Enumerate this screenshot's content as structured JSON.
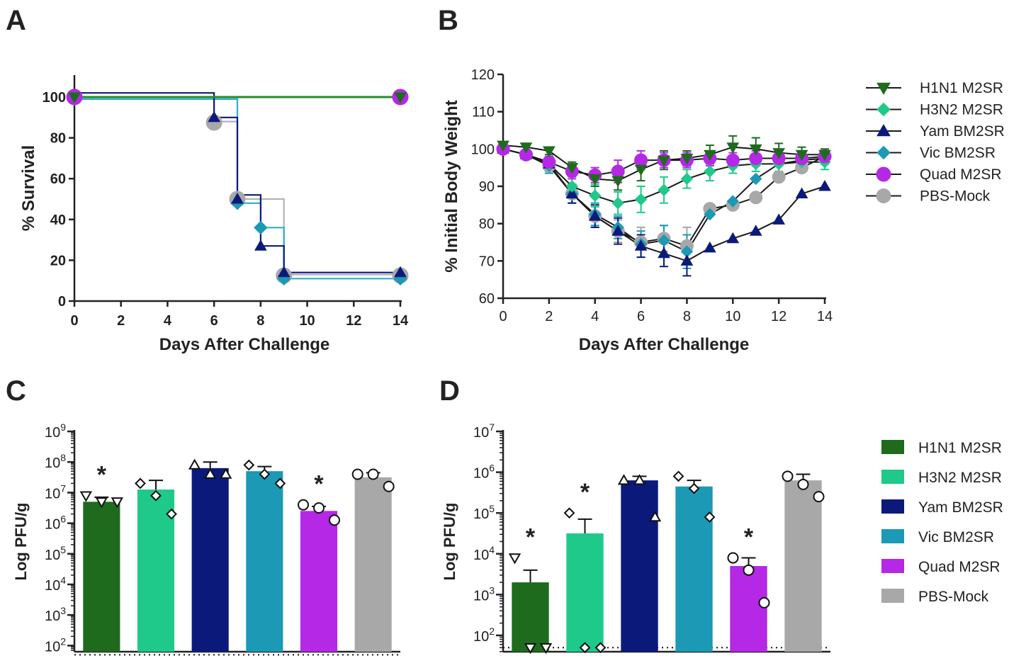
{
  "colors": {
    "h1n1": "#1e6b1e",
    "h3n2": "#1fc98a",
    "yam": "#0b1a7a",
    "vic": "#1b99b5",
    "quad": "#b428e6",
    "pbs": "#a8a8a8",
    "h1n1_line": "#2a8a2a",
    "vic_line": "#2bb0c8",
    "pbs_line": "#b3b3b3",
    "axis": "#222222"
  },
  "chart_data": [
    {
      "panel": "A",
      "type": "line",
      "subtype": "kaplan-meier",
      "xlabel": "Days After Challenge",
      "ylabel": "% Survival",
      "xlim": [
        0,
        14
      ],
      "ylim": [
        0,
        100
      ],
      "xticks": [
        "0",
        "2",
        "4",
        "6",
        "8",
        "10",
        "12",
        "14"
      ],
      "yticks": [
        "0",
        "20",
        "40",
        "60",
        "80",
        "100"
      ],
      "series": [
        {
          "name": "H1N1 M2SR",
          "key": "h1n1",
          "marker": "triangle-down",
          "steps": [
            [
              0,
              100
            ],
            [
              14,
              100
            ]
          ],
          "points": [
            [
              0,
              100
            ],
            [
              14,
              100
            ]
          ]
        },
        {
          "name": "H3N2 M2SR",
          "key": "h3n2",
          "marker": "diamond",
          "steps": [
            [
              0,
              100
            ],
            [
              14,
              100
            ]
          ],
          "points": [
            [
              0,
              100
            ],
            [
              14,
              100
            ]
          ]
        },
        {
          "name": "Quad M2SR",
          "key": "quad",
          "marker": "circle",
          "steps": [
            [
              0,
              100
            ],
            [
              14,
              100
            ]
          ],
          "points": [
            [
              0,
              100
            ],
            [
              14,
              100
            ]
          ]
        },
        {
          "name": "Yam BM2SR",
          "key": "yam",
          "marker": "triangle-up",
          "steps": [
            [
              0,
              102
            ],
            [
              6,
              102
            ],
            [
              6,
              90
            ],
            [
              7,
              90
            ],
            [
              7,
              52
            ],
            [
              8,
              52
            ],
            [
              8,
              27
            ],
            [
              9,
              27
            ],
            [
              9,
              14
            ],
            [
              14,
              14
            ]
          ],
          "points": [
            [
              6,
              90
            ],
            [
              7,
              50
            ],
            [
              8,
              27
            ],
            [
              9,
              14
            ],
            [
              14,
              14
            ]
          ]
        },
        {
          "name": "Vic BM2SR",
          "key": "vic",
          "marker": "diamond",
          "steps": [
            [
              0,
              99
            ],
            [
              7,
              99
            ],
            [
              7,
              48
            ],
            [
              8,
              48
            ],
            [
              8,
              36
            ],
            [
              9,
              36
            ],
            [
              9,
              11
            ],
            [
              14,
              11
            ]
          ],
          "points": [
            [
              0,
              99
            ],
            [
              7,
              48
            ],
            [
              8,
              36
            ],
            [
              9,
              11
            ],
            [
              14,
              11
            ]
          ]
        },
        {
          "name": "PBS-Mock",
          "key": "pbs",
          "marker": "circle",
          "steps": [
            [
              0,
              100
            ],
            [
              6,
              100
            ],
            [
              6,
              88
            ],
            [
              7,
              88
            ],
            [
              7,
              50
            ],
            [
              9,
              50
            ],
            [
              9,
              13
            ],
            [
              14,
              13
            ]
          ],
          "points": [
            [
              6,
              87.5
            ],
            [
              7,
              50
            ],
            [
              9,
              12.5
            ],
            [
              14,
              12.5
            ]
          ]
        }
      ]
    },
    {
      "panel": "B",
      "type": "line",
      "xlabel": "Days After Challenge",
      "ylabel": "% Initial Body Weight",
      "xlim": [
        0,
        14
      ],
      "ylim": [
        60,
        120
      ],
      "xticks": [
        "0",
        "2",
        "4",
        "6",
        "8",
        "10",
        "12",
        "14"
      ],
      "yticks": [
        "60",
        "70",
        "80",
        "90",
        "100",
        "110",
        "120"
      ],
      "series": [
        {
          "name": "H1N1 M2SR",
          "key": "h1n1",
          "marker": "triangle-down",
          "x": [
            0,
            1,
            2,
            3,
            4,
            5,
            6,
            7,
            8,
            9,
            10,
            11,
            12,
            13,
            14
          ],
          "y": [
            101,
            100.5,
            99.5,
            95,
            92,
            91.5,
            94.5,
            97,
            97.5,
            98.5,
            100.5,
            100,
            99,
            98.5,
            98.5
          ],
          "err": [
            1,
            1,
            1,
            1.5,
            2,
            2.5,
            3,
            2.5,
            2,
            2.5,
            3,
            3,
            2.5,
            2,
            1.5
          ]
        },
        {
          "name": "H3N2 M2SR",
          "key": "h3n2",
          "marker": "diamond",
          "x": [
            0,
            1,
            2,
            3,
            4,
            5,
            6,
            7,
            8,
            9,
            10,
            11,
            12,
            13,
            14
          ],
          "y": [
            100,
            98.5,
            96,
            90,
            87.5,
            85.5,
            86.5,
            89,
            92,
            94,
            95.5,
            96,
            96,
            96.5,
            96.5
          ],
          "err": [
            1,
            1,
            2,
            2.5,
            3,
            3,
            3.5,
            3.5,
            2.5,
            2.5,
            2,
            2,
            2,
            2,
            2
          ]
        },
        {
          "name": "Yam BM2SR",
          "key": "yam",
          "marker": "triangle-up",
          "x": [
            0,
            1,
            2,
            3,
            4,
            5,
            6,
            7,
            8,
            9,
            10,
            11,
            12,
            13,
            14
          ],
          "y": [
            100,
            98.5,
            96,
            88,
            82,
            78,
            74,
            72,
            70,
            73.5,
            76,
            78,
            81,
            88,
            90
          ],
          "err": [
            1,
            1,
            1.5,
            2.5,
            3,
            3.5,
            3,
            3.5,
            4,
            0,
            0,
            0,
            0,
            0,
            0
          ]
        },
        {
          "name": "Vic BM2SR",
          "key": "vic",
          "marker": "diamond",
          "x": [
            0,
            1,
            2,
            3,
            4,
            5,
            6,
            7,
            8,
            9,
            10,
            11,
            12,
            13,
            14
          ],
          "y": [
            100,
            98.5,
            95.5,
            88,
            82.5,
            79,
            74.5,
            75.5,
            72.5,
            82.5,
            86,
            92,
            96,
            97,
            97.5
          ],
          "err": [
            1,
            1,
            2,
            2.5,
            3,
            3,
            3.5,
            4,
            4.5,
            0,
            0,
            0,
            0,
            0,
            0
          ]
        },
        {
          "name": "Quad M2SR",
          "key": "quad",
          "marker": "circle",
          "x": [
            0,
            1,
            2,
            3,
            4,
            5,
            6,
            7,
            8,
            9,
            10,
            11,
            12,
            13,
            14
          ],
          "y": [
            100,
            98.5,
            96.5,
            94,
            93,
            94,
            97,
            97,
            97,
            97.5,
            97,
            97.5,
            97.5,
            97.5,
            98
          ],
          "err": [
            1,
            1,
            1.5,
            2,
            2,
            3,
            2.5,
            2,
            2,
            2,
            2,
            2,
            2,
            2,
            2
          ]
        },
        {
          "name": "PBS-Mock",
          "key": "pbs",
          "marker": "circle",
          "x": [
            0,
            1,
            2,
            3,
            4,
            5,
            6,
            7,
            8,
            9,
            10,
            11,
            12,
            13,
            14
          ],
          "y": [
            100,
            98.5,
            95.5,
            88,
            82,
            78,
            75,
            76,
            74,
            84,
            85,
            87,
            92.5,
            95,
            98
          ],
          "err": [
            1,
            1,
            2,
            2.5,
            3,
            3,
            4,
            3.5,
            5,
            0,
            0,
            0,
            0,
            0,
            0
          ]
        }
      ]
    },
    {
      "panel": "C",
      "type": "bar",
      "yscale": "log",
      "ylabel": "Log PFU/g",
      "ylim_exp": [
        1.8,
        9
      ],
      "yticks": [
        {
          "base": "10",
          "exp": "9",
          "v": 9
        },
        {
          "base": "10",
          "exp": "8",
          "v": 8
        },
        {
          "base": "10",
          "exp": "7",
          "v": 7
        },
        {
          "base": "10",
          "exp": "6",
          "v": 6
        },
        {
          "base": "10",
          "exp": "5",
          "v": 5
        },
        {
          "base": "10",
          "exp": "4",
          "v": 4
        },
        {
          "base": "10",
          "exp": "3",
          "v": 3
        },
        {
          "base": "10",
          "exp": "2",
          "v": 2
        }
      ],
      "detection_limit_exp": 1.7,
      "categories": [
        "H1N1 M2SR",
        "H3N2 M2SR",
        "Yam BM2SR",
        "Vic BM2SR",
        "Quad M2SR",
        "PBS-Mock"
      ],
      "keys": [
        "h1n1",
        "h3n2",
        "yam",
        "vic",
        "quad",
        "pbs"
      ],
      "markers": [
        "triangle-down",
        "diamond",
        "triangle-up",
        "diamond",
        "circle",
        "circle"
      ],
      "values_exp": [
        6.7,
        7.1,
        7.8,
        7.7,
        6.4,
        7.5
      ],
      "err_exp": [
        0.15,
        0.3,
        0.2,
        0.15,
        0.15,
        0.15
      ],
      "points_exp": [
        [
          6.9,
          6.7,
          6.7
        ],
        [
          7.3,
          6.9,
          6.3
        ],
        [
          7.9,
          7.6,
          7.6
        ],
        [
          7.9,
          7.6,
          7.3
        ],
        [
          6.6,
          6.5,
          6.1
        ],
        [
          7.6,
          7.6,
          7.2
        ]
      ],
      "significance": [
        "*",
        "",
        "",
        "",
        "*",
        ""
      ]
    },
    {
      "panel": "D",
      "type": "bar",
      "yscale": "log",
      "ylabel": "Log PFU/g",
      "ylim_exp": [
        1.6,
        7
      ],
      "yticks": [
        {
          "base": "10",
          "exp": "7",
          "v": 7
        },
        {
          "base": "10",
          "exp": "6",
          "v": 6
        },
        {
          "base": "10",
          "exp": "5",
          "v": 5
        },
        {
          "base": "10",
          "exp": "4",
          "v": 4
        },
        {
          "base": "10",
          "exp": "3",
          "v": 3
        },
        {
          "base": "10",
          "exp": "2",
          "v": 2
        }
      ],
      "detection_limit_exp": 1.7,
      "categories": [
        "H1N1 M2SR",
        "H3N2 M2SR",
        "Yam BM2SR",
        "Vic BM2SR",
        "Quad M2SR",
        "PBS-Mock"
      ],
      "keys": [
        "h1n1",
        "h3n2",
        "yam",
        "vic",
        "quad",
        "pbs"
      ],
      "markers": [
        "triangle-down",
        "diamond",
        "triangle-up",
        "diamond",
        "circle",
        "circle"
      ],
      "values_exp": [
        3.3,
        4.5,
        5.8,
        5.65,
        3.7,
        5.8
      ],
      "err_exp": [
        0.3,
        0.35,
        0.1,
        0.15,
        0.2,
        0.15
      ],
      "points_exp": [
        [
          3.9,
          1.7,
          1.7
        ],
        [
          5.0,
          1.7,
          1.7
        ],
        [
          5.8,
          5.8,
          4.9
        ],
        [
          5.9,
          5.6,
          4.9
        ],
        [
          3.9,
          3.6,
          2.8
        ],
        [
          5.9,
          5.7,
          5.4
        ]
      ],
      "significance": [
        "*",
        "*",
        "",
        "",
        "*",
        ""
      ]
    }
  ],
  "panels": {
    "a": {
      "letter": "A"
    },
    "b": {
      "letter": "B"
    },
    "c": {
      "letter": "C"
    },
    "d": {
      "letter": "D"
    }
  },
  "legend_top": {
    "items": [
      {
        "label": "H1N1 M2SR",
        "key": "h1n1",
        "marker": "triangle-down"
      },
      {
        "label": "H3N2 M2SR",
        "key": "h3n2",
        "marker": "diamond"
      },
      {
        "label": "Yam BM2SR",
        "key": "yam",
        "marker": "triangle-up"
      },
      {
        "label": "Vic BM2SR",
        "key": "vic",
        "marker": "diamond"
      },
      {
        "label": "Quad M2SR",
        "key": "quad",
        "marker": "circle"
      },
      {
        "label": "PBS-Mock",
        "key": "pbs",
        "marker": "circle"
      }
    ]
  },
  "legend_bottom": {
    "items": [
      {
        "label": "H1N1 M2SR",
        "key": "h1n1"
      },
      {
        "label": "H3N2 M2SR",
        "key": "h3n2"
      },
      {
        "label": "Yam BM2SR",
        "key": "yam"
      },
      {
        "label": "Vic BM2SR",
        "key": "vic"
      },
      {
        "label": "Quad M2SR",
        "key": "quad"
      },
      {
        "label": "PBS-Mock",
        "key": "pbs"
      }
    ]
  }
}
